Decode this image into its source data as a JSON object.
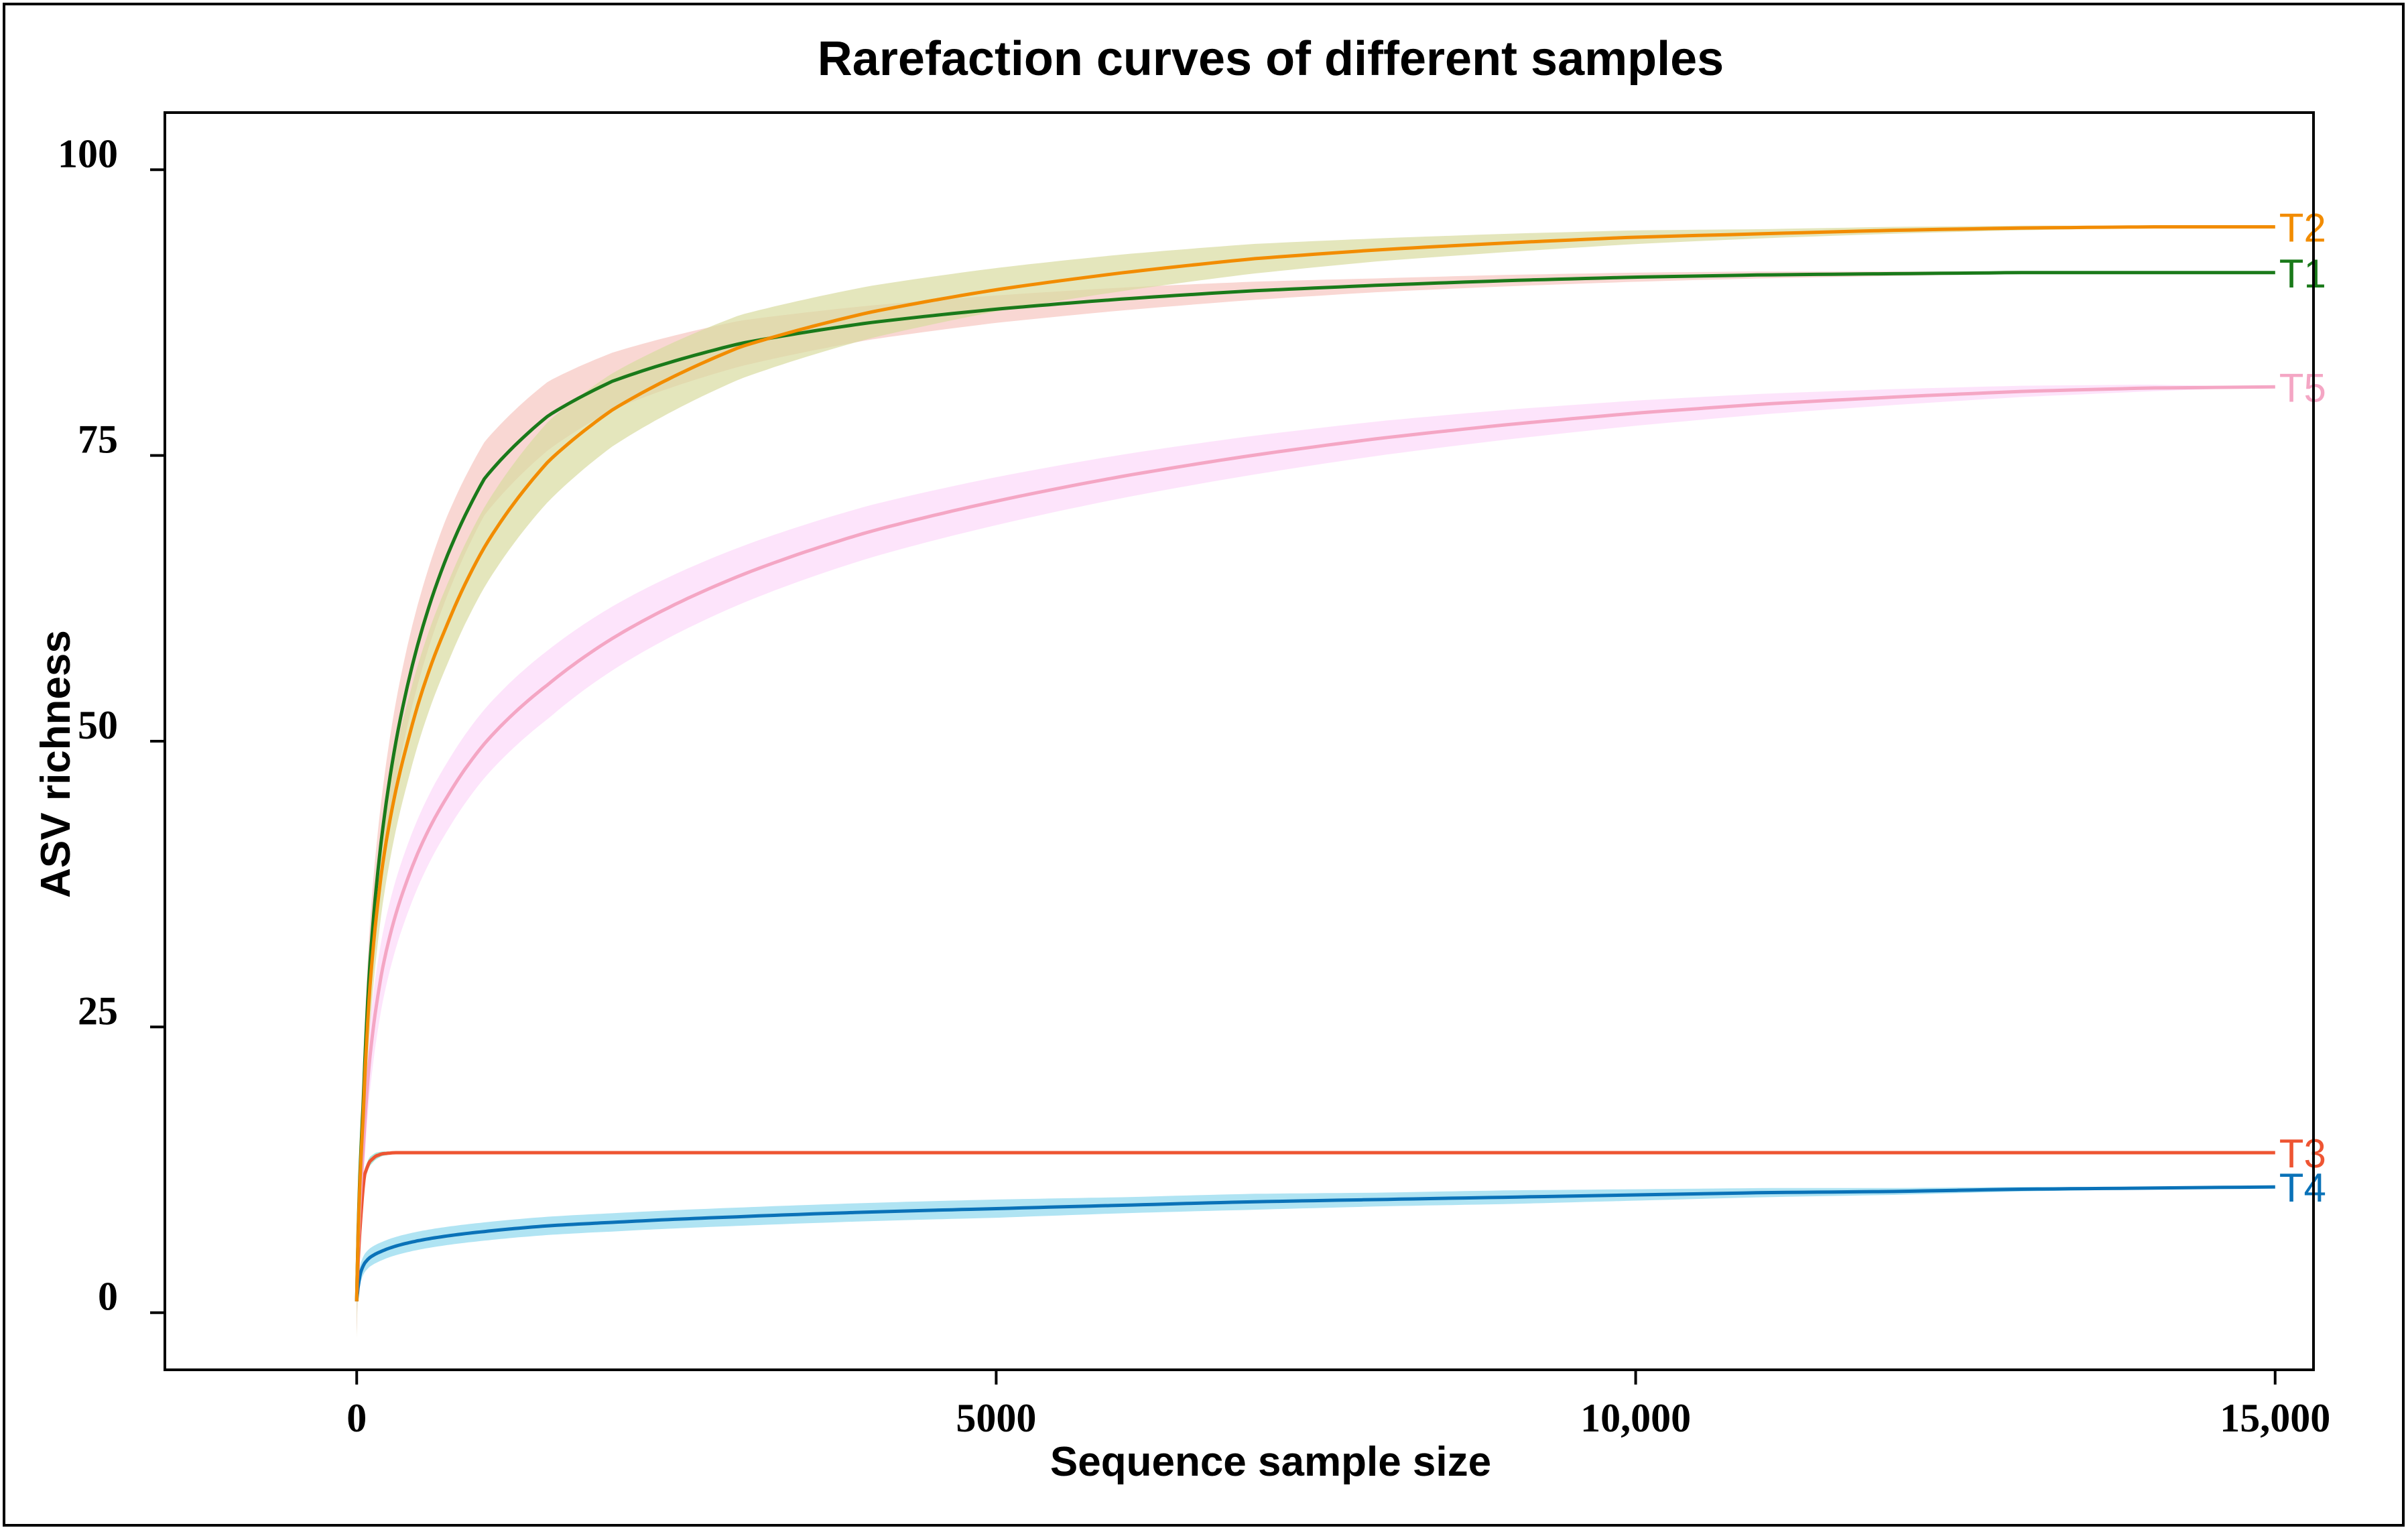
{
  "chart_data": {
    "type": "line",
    "title": "Rarefaction curves of different samples",
    "xlabel": "Sequence sample size",
    "ylabel": "ASV richness",
    "xlim": [
      -1500,
      15300
    ],
    "ylim": [
      -5,
      105
    ],
    "xticks": [
      0,
      5000,
      10000,
      15000
    ],
    "xtick_labels": [
      "0",
      "5000",
      "10,000",
      "15,000"
    ],
    "yticks": [
      0,
      25,
      50,
      75,
      100
    ],
    "ytick_labels": [
      "0",
      "25",
      "50",
      "75",
      "100"
    ],
    "grid": false,
    "legend": "inline labels at line ends",
    "series": [
      {
        "name": "T1",
        "color": "#1a7a1a",
        "band_color": "#f6c6c0",
        "x": [
          0,
          50,
          100,
          200,
          400,
          700,
          1000,
          1500,
          2000,
          3000,
          4000,
          5000,
          6000,
          7000,
          8000,
          9000,
          10000,
          11000,
          12000,
          13000,
          14000,
          15000
        ],
        "y": [
          1,
          18,
          30,
          42,
          55,
          66,
          73,
          78.5,
          81.5,
          84.8,
          86.6,
          87.8,
          88.7,
          89.4,
          89.9,
          90.3,
          90.6,
          90.8,
          90.9,
          91,
          91,
          91
        ],
        "band": [
          3.5,
          3.5,
          3.5,
          3.5,
          3.5,
          3.5,
          3.2,
          3,
          2.5,
          2,
          1.5,
          1.2,
          1,
          0.8,
          0.6,
          0.5,
          0.4,
          0.3,
          0.2,
          0.1,
          0.05,
          0
        ]
      },
      {
        "name": "T2",
        "color": "#f28c00",
        "band_color": "#d9dca0",
        "x": [
          0,
          50,
          100,
          200,
          400,
          700,
          1000,
          1500,
          2000,
          3000,
          4000,
          5000,
          6000,
          7000,
          8000,
          9000,
          10000,
          11000,
          12000,
          13000,
          14000,
          15000
        ],
        "y": [
          1,
          17,
          28,
          39,
          50,
          60,
          67,
          74.5,
          79,
          84.5,
          87.5,
          89.5,
          91,
          92.2,
          93,
          93.6,
          94.1,
          94.4,
          94.7,
          94.9,
          95,
          95
        ],
        "band": [
          3.5,
          3.5,
          3.5,
          3.5,
          3.5,
          3.5,
          3.5,
          3.5,
          3.2,
          2.8,
          2.3,
          1.9,
          1.6,
          1.3,
          1,
          0.8,
          0.6,
          0.4,
          0.3,
          0.2,
          0.1,
          0
        ]
      },
      {
        "name": "T3",
        "color": "#ee5533",
        "band_color": "#80dccb",
        "x": [
          0,
          30,
          60,
          100,
          150,
          200,
          300,
          500,
          1000,
          5000,
          10000,
          15000
        ],
        "y": [
          1,
          8,
          12,
          13.2,
          13.7,
          13.9,
          14,
          14,
          14,
          14,
          14,
          14
        ],
        "band": [
          0.5,
          0.5,
          0.5,
          0.4,
          0.3,
          0.2,
          0.1,
          0,
          0,
          0,
          0,
          0
        ]
      },
      {
        "name": "T4",
        "color": "#0a72b8",
        "band_color": "#8fd8ee",
        "x": [
          0,
          30,
          60,
          100,
          200,
          400,
          700,
          1000,
          1500,
          2000,
          3000,
          4000,
          5000,
          6000,
          7000,
          8000,
          9000,
          10000,
          11000,
          12000,
          13000,
          14000,
          15000
        ],
        "y": [
          1,
          3.5,
          4.3,
          4.8,
          5.4,
          6.1,
          6.7,
          7.1,
          7.6,
          7.9,
          8.4,
          8.8,
          9.1,
          9.4,
          9.7,
          9.9,
          10.1,
          10.3,
          10.5,
          10.6,
          10.8,
          10.9,
          11
        ],
        "band": [
          0.8,
          0.8,
          0.8,
          0.8,
          0.8,
          0.8,
          0.8,
          0.8,
          0.8,
          0.8,
          0.8,
          0.8,
          0.8,
          0.7,
          0.7,
          0.6,
          0.6,
          0.5,
          0.4,
          0.3,
          0.2,
          0.1,
          0
        ]
      },
      {
        "name": "T5",
        "color": "#f4a6c4",
        "band_color": "#fcd8fa",
        "x": [
          0,
          50,
          100,
          200,
          400,
          700,
          1000,
          1500,
          2000,
          3000,
          4000,
          5000,
          6000,
          7000,
          8000,
          9000,
          10000,
          11000,
          12000,
          13000,
          14000,
          15000
        ],
        "y": [
          1,
          14,
          22,
          30,
          38,
          45,
          49.8,
          55,
          59,
          64.5,
          68.3,
          71,
          73.2,
          75,
          76.5,
          77.7,
          78.7,
          79.5,
          80.1,
          80.6,
          80.9,
          81
        ],
        "band": [
          3,
          3,
          3,
          3,
          3,
          3,
          3,
          3,
          2.8,
          2.5,
          2.3,
          2.1,
          1.9,
          1.7,
          1.5,
          1.3,
          1.1,
          0.9,
          0.7,
          0.5,
          0.3,
          0
        ]
      }
    ]
  }
}
